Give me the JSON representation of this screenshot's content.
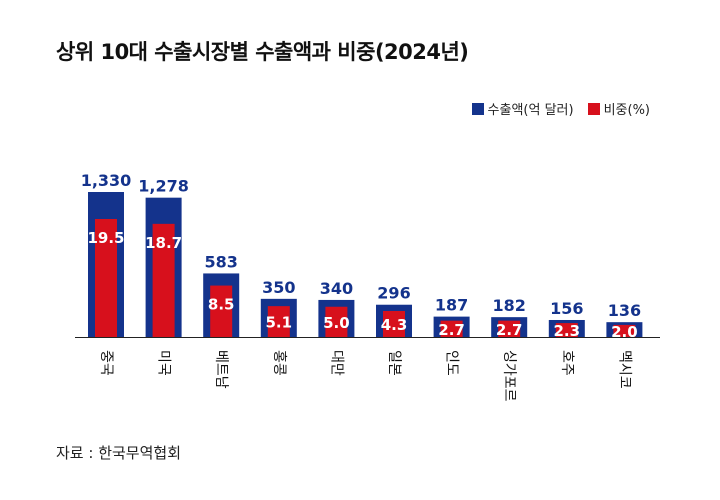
{
  "title": "상위 10대 수출시장별 수출액과 비중(2024년)",
  "source": "자료 : 한국무역협회",
  "legend": {
    "export_label": "수출액(억 달러)",
    "share_label": "비중(%)"
  },
  "colors": {
    "export": "#14338c",
    "share": "#d7101c",
    "axis": "#222222",
    "text": "#111111",
    "share_text": "#ffffff"
  },
  "chart_data": {
    "type": "bar",
    "title": "상위 10대 수출시장별 수출액과 비중(2024년)",
    "categories": [
      "중국",
      "미국",
      "베트남",
      "홍콩",
      "대만",
      "일본",
      "인도",
      "싱가포르",
      "호주",
      "멕시코"
    ],
    "series": [
      {
        "name": "수출액(억 달러)",
        "values": [
          1330,
          1278,
          583,
          350,
          340,
          296,
          187,
          182,
          156,
          136
        ]
      },
      {
        "name": "비중(%)",
        "values": [
          19.5,
          18.7,
          8.5,
          5.1,
          5.0,
          4.3,
          2.7,
          2.7,
          2.3,
          2.0
        ]
      }
    ],
    "value_labels": [
      "1,330",
      "1,278",
      "583",
      "350",
      "340",
      "296",
      "187",
      "182",
      "156",
      "136"
    ],
    "share_labels": [
      "19.5",
      "18.7",
      "8.5",
      "5.1",
      "5.0",
      "4.3",
      "2.7",
      "2.7",
      "2.3",
      "2.0"
    ],
    "legend_position": "top-right",
    "grid": false
  }
}
